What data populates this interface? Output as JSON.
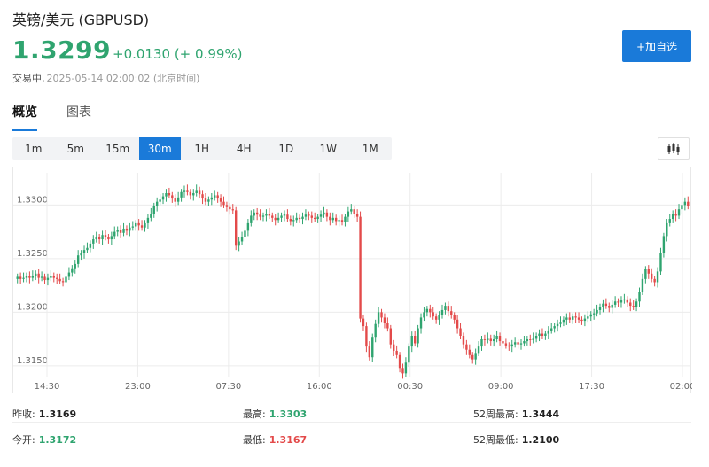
{
  "header": {
    "title": "英镑/美元 (GBPUSD)",
    "price": "1.3299",
    "change": "+0.0130 (+ 0.99%)",
    "status": "交易中,",
    "timestamp": "2025-05-14 02:00:02 (北京时间)",
    "add_watchlist": "+加自选"
  },
  "colors": {
    "up": "#2fa46f",
    "down": "#e34a4a",
    "accent": "#1a7ad9"
  },
  "tabs": [
    {
      "label": "概览",
      "active": true
    },
    {
      "label": "图表",
      "active": false
    }
  ],
  "periods": [
    {
      "label": "1m",
      "active": false
    },
    {
      "label": "5m",
      "active": false
    },
    {
      "label": "15m",
      "active": false
    },
    {
      "label": "30m",
      "active": true
    },
    {
      "label": "1H",
      "active": false
    },
    {
      "label": "4H",
      "active": false
    },
    {
      "label": "1D",
      "active": false
    },
    {
      "label": "1W",
      "active": false
    },
    {
      "label": "1M",
      "active": false
    }
  ],
  "chart_type_icon": "candlestick-icon",
  "chart_data": {
    "type": "candlestick",
    "ylim": [
      1.314,
      1.333
    ],
    "y_ticks": [
      "1.3300",
      "1.3250",
      "1.3200",
      "1.3150"
    ],
    "x_ticks": [
      "14:30",
      "23:00",
      "07:30",
      "16:00",
      "00:30",
      "09:00",
      "17:30",
      "02:00"
    ],
    "grid": true,
    "close_series": [
      1.3233,
      1.3231,
      1.3232,
      1.3234,
      1.3232,
      1.3234,
      1.3236,
      1.3232,
      1.3233,
      1.323,
      1.3232,
      1.3234,
      1.3232,
      1.3231,
      1.3229,
      1.3228,
      1.3233,
      1.3237,
      1.3241,
      1.3245,
      1.3253,
      1.3255,
      1.3258,
      1.326,
      1.3264,
      1.3268,
      1.327,
      1.3268,
      1.3272,
      1.327,
      1.3268,
      1.3271,
      1.3275,
      1.3277,
      1.3274,
      1.3278,
      1.3276,
      1.3279,
      1.328,
      1.3283,
      1.3281,
      1.3279,
      1.3283,
      1.3288,
      1.3292,
      1.3299,
      1.3303,
      1.3305,
      1.3308,
      1.3311,
      1.3309,
      1.3306,
      1.3303,
      1.3307,
      1.3312,
      1.3314,
      1.3312,
      1.3309,
      1.3311,
      1.3314,
      1.331,
      1.3306,
      1.3303,
      1.3305,
      1.3307,
      1.3309,
      1.3306,
      1.3303,
      1.33,
      1.3298,
      1.3296,
      1.3295,
      1.3262,
      1.3266,
      1.327,
      1.3276,
      1.3283,
      1.329,
      1.3293,
      1.3291,
      1.3289,
      1.329,
      1.3292,
      1.329,
      1.3288,
      1.3286,
      1.3288,
      1.329,
      1.3291,
      1.3287,
      1.3285,
      1.3286,
      1.3288,
      1.3287,
      1.3289,
      1.3291,
      1.329,
      1.3288,
      1.3287,
      1.3289,
      1.3291,
      1.3293,
      1.3289,
      1.3286,
      1.3288,
      1.3285,
      1.3286,
      1.3284,
      1.3289,
      1.3294,
      1.3296,
      1.3292,
      1.3289,
      1.3194,
      1.3187,
      1.3168,
      1.3158,
      1.3177,
      1.3189,
      1.32,
      1.3195,
      1.319,
      1.3185,
      1.317,
      1.3164,
      1.316,
      1.3148,
      1.3143,
      1.3153,
      1.3168,
      1.3178,
      1.3171,
      1.3185,
      1.3195,
      1.32,
      1.3203,
      1.32,
      1.3196,
      1.3193,
      1.3197,
      1.3202,
      1.3206,
      1.3201,
      1.3197,
      1.3193,
      1.3185,
      1.3178,
      1.317,
      1.3165,
      1.316,
      1.3156,
      1.3162,
      1.3168,
      1.3175,
      1.3174,
      1.3176,
      1.3173,
      1.3175,
      1.3178,
      1.3173,
      1.3171,
      1.3169,
      1.3168,
      1.317,
      1.3172,
      1.317,
      1.3171,
      1.3173,
      1.3175,
      1.3174,
      1.3176,
      1.3178,
      1.318,
      1.3178,
      1.318,
      1.3183,
      1.3185,
      1.3187,
      1.3189,
      1.3191,
      1.3193,
      1.3195,
      1.3193,
      1.3196,
      1.3195,
      1.3193,
      1.3192,
      1.3194,
      1.3196,
      1.3198,
      1.3199,
      1.3202,
      1.3205,
      1.3208,
      1.3206,
      1.3204,
      1.3207,
      1.321,
      1.3209,
      1.3211,
      1.3212,
      1.3209,
      1.3206,
      1.3205,
      1.321,
      1.3219,
      1.3231,
      1.324,
      1.3236,
      1.3231,
      1.3228,
      1.3238,
      1.3255,
      1.3271,
      1.3283,
      1.3287,
      1.3292,
      1.329,
      1.3296,
      1.33,
      1.3303,
      1.3299
    ]
  },
  "stats": [
    [
      {
        "label": "昨收:",
        "value": "1.3169",
        "dir": ""
      },
      {
        "label": "最高:",
        "value": "1.3303",
        "dir": "up"
      },
      {
        "label": "52周最高:",
        "value": "1.3444",
        "dir": ""
      }
    ],
    [
      {
        "label": "今开:",
        "value": "1.3172",
        "dir": "up"
      },
      {
        "label": "最低:",
        "value": "1.3167",
        "dir": "down"
      },
      {
        "label": "52周最低:",
        "value": "1.2100",
        "dir": ""
      }
    ]
  ]
}
